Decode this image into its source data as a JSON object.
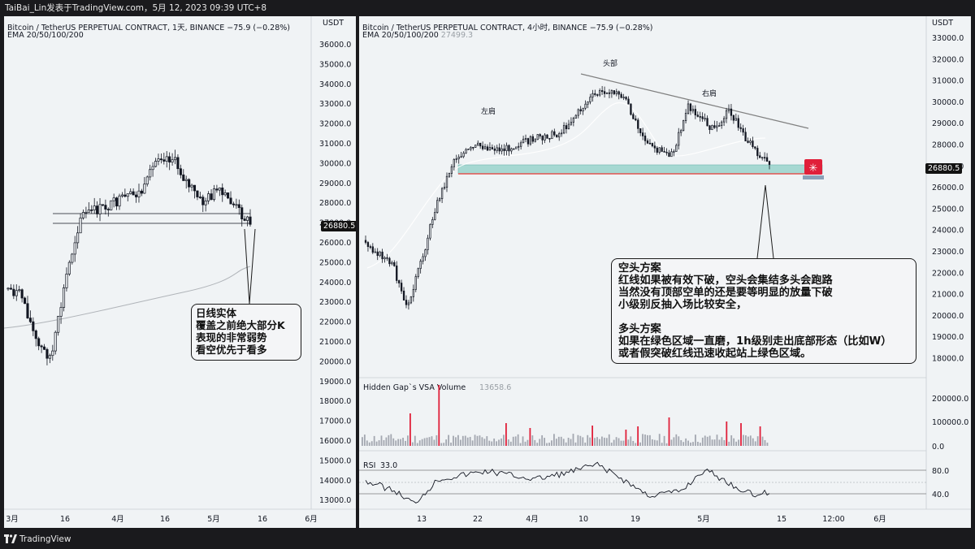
{
  "header": {
    "text": "TaiBai_Lin发表于TradingView.com，5月 12, 2023 09:39 UTC+8"
  },
  "left": {
    "title": "Bitcoin / TetherUS PERPETUAL CONTRACT, 1天, BINANCE  −75.9 (−0.28%)",
    "ema": "EMA 20/50/100/200",
    "currency": "USDT",
    "price_tag": "26880.5",
    "y_ticks": [
      "36000.0",
      "35000.0",
      "34000.0",
      "33000.0",
      "32000.0",
      "31000.0",
      "30000.0",
      "29000.0",
      "28000.0",
      "27000.0",
      "26000.0",
      "25000.0",
      "24000.0",
      "23000.0",
      "22000.0",
      "21000.0",
      "20000.0",
      "19000.0",
      "18000.0",
      "17000.0",
      "16000.0",
      "15000.0",
      "14000.0",
      "13000.0"
    ],
    "x_ticks": [
      "3月",
      "16",
      "4月",
      "16",
      "5月",
      "16",
      "6月"
    ],
    "note": "日线实体\n覆盖之前绝大部分K\n表现的非常弱势\n看空优先于看多"
  },
  "right": {
    "title": "Bitcoin / TetherUS PERPETUAL CONTRACT, 4小时, BINANCE  −75.9 (−0.28%)",
    "ema": "EMA 20/50/100/200",
    "ema_value": "27499.3",
    "currency": "USDT",
    "price_tag": "26880.5",
    "y_ticks": [
      "33000.0",
      "32000.0",
      "31000.0",
      "30000.0",
      "29000.0",
      "28000.0",
      "27000.0",
      "26000.0",
      "25000.0",
      "24000.0",
      "23000.0",
      "22000.0",
      "21000.0",
      "20000.0",
      "19000.0",
      "18000.0"
    ],
    "labels": {
      "left_shoulder": "左肩",
      "head": "头部",
      "right_shoulder": "右肩"
    },
    "note": "空头方案\n红线如果被有效下破，空头会集结多头会跑路\n当然没有顶部空单的还是要等明显的放量下破\n小级别反抽入场比较安全，\n\n多头方案\n如果在绿色区域一直磨，1h级别走出底部形态（比如W）\n或者假突破红线迅速收起站上绿色区域。",
    "volume": {
      "label": "Hidden Gap`s VSA Volume",
      "value": "13658.6",
      "ticks": [
        "200000.0",
        "100000.0",
        "0.0"
      ]
    },
    "rsi": {
      "label": "RSI",
      "value": "33.0",
      "ticks": [
        "80.0",
        "40.0"
      ]
    },
    "x_ticks": [
      "13",
      "22",
      "4月",
      "10",
      "19",
      "5月",
      "15",
      "12:00",
      "6月"
    ]
  },
  "footer": {
    "brand": "TradingView"
  },
  "colors": {
    "up": "#131722",
    "down": "#131722",
    "zone": "#9fd6d0",
    "support": "#e53935",
    "neckline": "#7d7d7d",
    "vol_spike": "#e0203a",
    "vol": "#a3a7b0"
  }
}
